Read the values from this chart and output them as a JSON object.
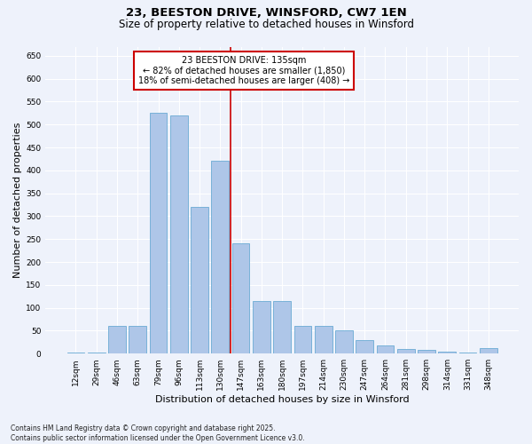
{
  "title": "23, BEESTON DRIVE, WINSFORD, CW7 1EN",
  "subtitle": "Size of property relative to detached houses in Winsford",
  "xlabel": "Distribution of detached houses by size in Winsford",
  "ylabel": "Number of detached properties",
  "footnote1": "Contains HM Land Registry data © Crown copyright and database right 2025.",
  "footnote2": "Contains public sector information licensed under the Open Government Licence v3.0.",
  "categories": [
    "12sqm",
    "29sqm",
    "46sqm",
    "63sqm",
    "79sqm",
    "96sqm",
    "113sqm",
    "130sqm",
    "147sqm",
    "163sqm",
    "180sqm",
    "197sqm",
    "214sqm",
    "230sqm",
    "247sqm",
    "264sqm",
    "281sqm",
    "298sqm",
    "314sqm",
    "331sqm",
    "348sqm"
  ],
  "values": [
    2,
    2,
    60,
    60,
    525,
    520,
    320,
    420,
    240,
    115,
    115,
    60,
    60,
    50,
    30,
    18,
    10,
    8,
    5,
    2,
    12
  ],
  "bar_color": "#aec6e8",
  "bar_edge_color": "#6aaad4",
  "vline_color": "#cc0000",
  "annotation_title": "23 BEESTON DRIVE: 135sqm",
  "annotation_line1": "← 82% of detached houses are smaller (1,850)",
  "annotation_line2": "18% of semi-detached houses are larger (408) →",
  "annotation_box_facecolor": "#ffffff",
  "annotation_box_edgecolor": "#cc0000",
  "ylim": [
    0,
    670
  ],
  "yticks": [
    0,
    50,
    100,
    150,
    200,
    250,
    300,
    350,
    400,
    450,
    500,
    550,
    600,
    650
  ],
  "background_color": "#eef2fb",
  "grid_color": "#ffffff",
  "title_fontsize": 9.5,
  "subtitle_fontsize": 8.5,
  "ylabel_fontsize": 8,
  "xlabel_fontsize": 8,
  "tick_fontsize": 6.5,
  "annotation_fontsize": 7,
  "footnote_fontsize": 5.5
}
